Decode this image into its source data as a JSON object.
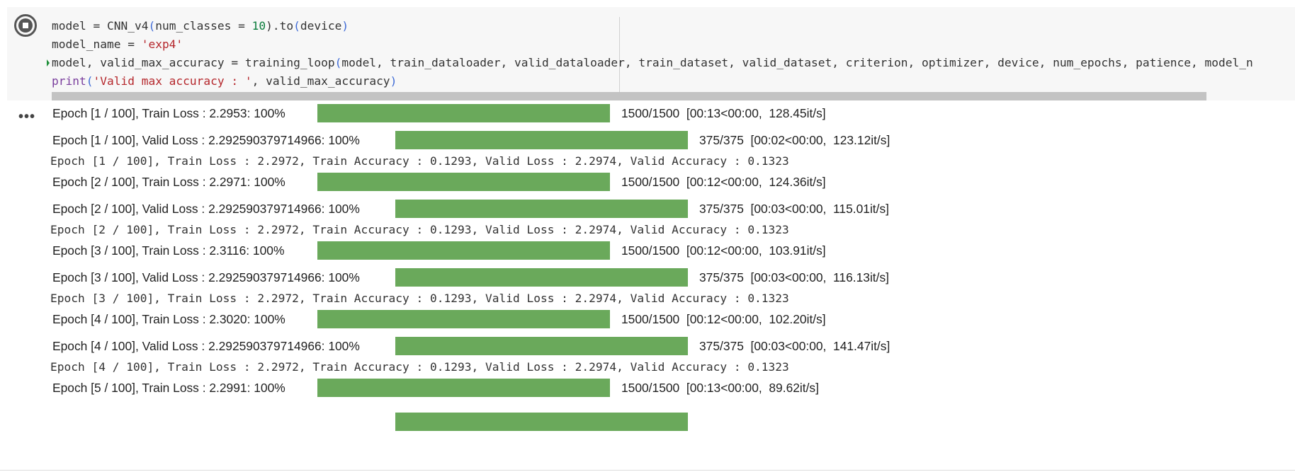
{
  "cell": {
    "code_lines": [
      {
        "seg": [
          {
            "t": "model = CNN_v4",
            "c": ""
          },
          {
            "t": "(",
            "c": "paren"
          },
          {
            "t": "num_classes = ",
            "c": ""
          },
          {
            "t": "10",
            "c": "num"
          },
          {
            "t": ").to",
            "c": ""
          },
          {
            "t": "(",
            "c": "paren"
          },
          {
            "t": "device",
            "c": ""
          },
          {
            "t": ")",
            "c": "paren"
          }
        ]
      },
      {
        "seg": [
          {
            "t": "model_name = ",
            "c": ""
          },
          {
            "t": "'exp4'",
            "c": "str"
          }
        ]
      },
      {
        "seg": [
          {
            "t": "model, valid_max_accuracy = training_loop",
            "c": ""
          },
          {
            "t": "(",
            "c": "paren"
          },
          {
            "t": "model, train_dataloader, valid_dataloader, train_dataset, valid_dataset, criterion, optimizer, device, num_epochs, patience, model_n",
            "c": ""
          }
        ]
      },
      {
        "seg": [
          {
            "t": "print",
            "c": "kw"
          },
          {
            "t": "(",
            "c": "paren"
          },
          {
            "t": "'Valid max accuracy : '",
            "c": "str"
          },
          {
            "t": ", valid_max_accuracy",
            "c": ""
          },
          {
            "t": ")",
            "c": "paren"
          }
        ]
      }
    ]
  },
  "output_menu_label": "•••",
  "output": [
    {
      "type": "bar",
      "kind": "train",
      "label": "Epoch [1 / 100], Train Loss : 2.2953: 100%",
      "progress": 1.0,
      "stats": "1500/1500  [00:13<00:00,  128.45it/s]"
    },
    {
      "type": "bar",
      "kind": "valid",
      "label": "Epoch [1 / 100], Valid Loss : 2.292590379714966: 100%",
      "progress": 1.0,
      "stats": "375/375  [00:02<00:00,  123.12it/s]"
    },
    {
      "type": "text",
      "text": "Epoch [1 / 100], Train Loss : 2.2972, Train Accuracy : 0.1293, Valid Loss : 2.2974, Valid Accuracy : 0.1323"
    },
    {
      "type": "bar",
      "kind": "train",
      "label": "Epoch [2 / 100], Train Loss : 2.2971: 100%",
      "progress": 1.0,
      "stats": "1500/1500  [00:12<00:00,  124.36it/s]"
    },
    {
      "type": "bar",
      "kind": "valid",
      "label": "Epoch [2 / 100], Valid Loss : 2.292590379714966: 100%",
      "progress": 1.0,
      "stats": "375/375  [00:03<00:00,  115.01it/s]"
    },
    {
      "type": "text",
      "text": "Epoch [2 / 100], Train Loss : 2.2972, Train Accuracy : 0.1293, Valid Loss : 2.2974, Valid Accuracy : 0.1323"
    },
    {
      "type": "bar",
      "kind": "train",
      "label": "Epoch [3 / 100], Train Loss : 2.3116: 100%",
      "progress": 1.0,
      "stats": "1500/1500  [00:12<00:00,  103.91it/s]"
    },
    {
      "type": "bar",
      "kind": "valid",
      "label": "Epoch [3 / 100], Valid Loss : 2.292590379714966: 100%",
      "progress": 1.0,
      "stats": "375/375  [00:03<00:00,  116.13it/s]"
    },
    {
      "type": "text",
      "text": "Epoch [3 / 100], Train Loss : 2.2972, Train Accuracy : 0.1293, Valid Loss : 2.2974, Valid Accuracy : 0.1323"
    },
    {
      "type": "bar",
      "kind": "train",
      "label": "Epoch [4 / 100], Train Loss : 2.3020: 100%",
      "progress": 1.0,
      "stats": "1500/1500  [00:12<00:00,  102.20it/s]"
    },
    {
      "type": "bar",
      "kind": "valid",
      "label": "Epoch [4 / 100], Valid Loss : 2.292590379714966: 100%",
      "progress": 1.0,
      "stats": "375/375  [00:03<00:00,  141.47it/s]"
    },
    {
      "type": "text",
      "text": "Epoch [4 / 100], Train Loss : 2.2972, Train Accuracy : 0.1293, Valid Loss : 2.2974, Valid Accuracy : 0.1323"
    },
    {
      "type": "bar",
      "kind": "train",
      "label": "Epoch [5 / 100], Train Loss : 2.2991: 100%",
      "progress": 1.0,
      "stats": "1500/1500  [00:13<00:00,  89.62it/s]"
    },
    {
      "type": "bar",
      "kind": "valid",
      "label": "",
      "progress": 1.0,
      "stats": ""
    }
  ],
  "colors": {
    "bar_fill": "#6aa95b",
    "cell_bg": "#f7f7f7"
  }
}
